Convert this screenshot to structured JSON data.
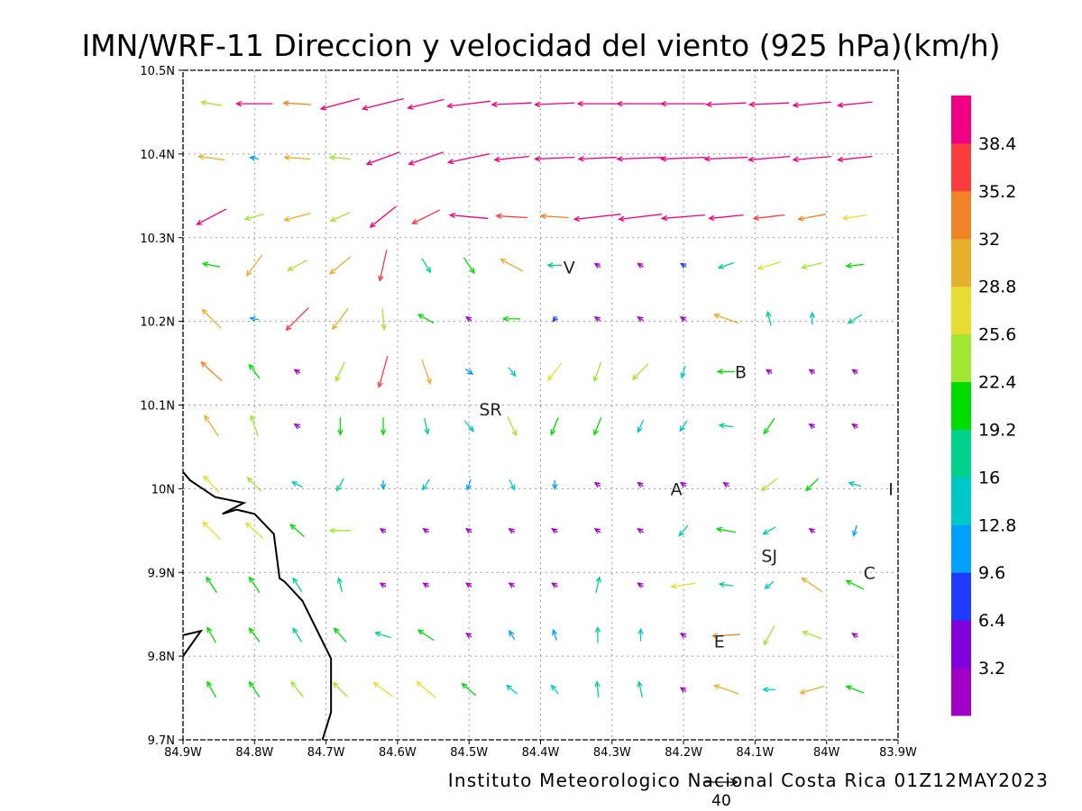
{
  "chart_data": {
    "type": "wind-vector-map",
    "title": "IMN/WRF-11 Direccion y velocidad del viento (925 hPa)(km/h)",
    "footer": "Instituto Meteorologico Nacional Costa Rica 01Z12MAY2023",
    "reference_vector": "40",
    "x_ticks": [
      "84.9W",
      "84.8W",
      "84.7W",
      "84.6W",
      "84.5W",
      "84.4W",
      "84.3W",
      "84.2W",
      "84.1W",
      "84W",
      "83.9W"
    ],
    "y_ticks": [
      "9.7N",
      "9.8N",
      "9.9N",
      "10N",
      "10.1N",
      "10.2N",
      "10.3N",
      "10.4N",
      "10.5N"
    ],
    "xlim": [
      -84.9,
      -83.9
    ],
    "ylim": [
      9.7,
      10.5
    ],
    "grid": true,
    "colorbar": {
      "labels": [
        "3.2",
        "6.4",
        "9.6",
        "12.8",
        "16",
        "19.2",
        "22.4",
        "25.6",
        "28.8",
        "32",
        "35.2",
        "38.4"
      ],
      "colors": [
        "#a000c8",
        "#8200dc",
        "#1e3cff",
        "#00a0ff",
        "#00c8c8",
        "#00d28c",
        "#00dc00",
        "#a0e632",
        "#e6dc32",
        "#e6af2d",
        "#f08228",
        "#fa3c3c",
        "#f00082"
      ]
    },
    "places": [
      {
        "label": "V",
        "lon": -84.36,
        "lat": 10.265
      },
      {
        "label": "B",
        "lon": -84.12,
        "lat": 10.14
      },
      {
        "label": "SR",
        "lon": -84.47,
        "lat": 10.095
      },
      {
        "label": "A",
        "lon": -84.21,
        "lat": 10.0
      },
      {
        "label": "I",
        "lon": -83.91,
        "lat": 10.0
      },
      {
        "label": "SJ",
        "lon": -84.08,
        "lat": 9.92
      },
      {
        "label": "C",
        "lon": -83.94,
        "lat": 9.9
      },
      {
        "label": "E",
        "lon": -84.15,
        "lat": 9.818
      }
    ],
    "coastline": [
      [
        -84.9,
        10.02
      ],
      [
        -84.89,
        10.01
      ],
      [
        -84.855,
        9.99
      ],
      [
        -84.815,
        9.983
      ],
      [
        -84.845,
        9.97
      ],
      [
        -84.825,
        9.975
      ],
      [
        -84.8,
        9.97
      ],
      [
        -84.773,
        9.946
      ],
      [
        -84.765,
        9.893
      ],
      [
        -84.758,
        9.889
      ],
      [
        -84.733,
        9.866
      ],
      [
        -84.693,
        9.797
      ],
      [
        -84.693,
        9.733
      ],
      [
        -84.705,
        9.7
      ]
    ],
    "coastline2": [
      [
        -84.9,
        9.825
      ],
      [
        -84.875,
        9.83
      ],
      [
        -84.9,
        9.8
      ]
    ],
    "lon_cols": [
      -84.86,
      -84.8,
      -84.74,
      -84.68,
      -84.62,
      -84.56,
      -84.5,
      -84.44,
      -84.38,
      -84.32,
      -84.26,
      -84.2,
      -84.14,
      -84.08,
      -84.02,
      -83.96
    ],
    "vector_rows": [
      {
        "lat": 10.46,
        "dx": [
          -24,
          -42,
          -32,
          -45,
          -48,
          -42,
          -50,
          -46,
          -46,
          -46,
          -54,
          -52,
          -46,
          -46,
          -44,
          -40
        ],
        "dy": [
          4,
          0,
          2,
          -12,
          -12,
          -10,
          -6,
          -2,
          -2,
          0,
          0,
          0,
          -2,
          -2,
          -4,
          -4
        ]
      },
      {
        "lat": 10.395,
        "dx": [
          -30,
          -10,
          -30,
          -24,
          -38,
          -40,
          -48,
          -40,
          -46,
          -44,
          -54,
          -52,
          -50,
          -48,
          -44,
          -40
        ],
        "dy": [
          4,
          2,
          2,
          2,
          -14,
          -14,
          -10,
          -4,
          -2,
          -2,
          -2,
          -2,
          -2,
          -4,
          -4,
          -4
        ]
      },
      {
        "lat": 10.325,
        "dx": [
          -34,
          -22,
          -30,
          -22,
          -30,
          -32,
          -44,
          -36,
          -32,
          -54,
          -50,
          -50,
          -40,
          -36,
          -32,
          -28
        ],
        "dy": [
          -18,
          -6,
          -8,
          -10,
          -24,
          -16,
          4,
          2,
          2,
          -6,
          -6,
          -4,
          -4,
          -4,
          -6,
          -4
        ]
      },
      {
        "lat": 10.267,
        "dx": [
          -20,
          -18,
          -22,
          -24,
          -8,
          10,
          12,
          -26,
          -16,
          0,
          0,
          -6,
          -18,
          -26,
          -24,
          -20
        ],
        "dy": [
          4,
          -24,
          -12,
          -20,
          -36,
          -16,
          -18,
          14,
          0,
          0,
          0,
          4,
          -6,
          -8,
          -6,
          -2
        ]
      },
      {
        "lat": 10.203,
        "dx": [
          -22,
          -10,
          -26,
          -18,
          2,
          -18,
          0,
          -20,
          -4,
          0,
          0,
          0,
          -28,
          -4,
          0,
          -16
        ],
        "dy": [
          22,
          2,
          -26,
          -24,
          -24,
          10,
          0,
          0,
          -6,
          0,
          0,
          0,
          10,
          16,
          14,
          -10
        ]
      },
      {
        "lat": 10.14,
        "dx": [
          -24,
          -12,
          0,
          -10,
          -10,
          10,
          8,
          8,
          -16,
          -8,
          -18,
          -4,
          -20,
          0,
          0,
          0
        ],
        "dy": [
          22,
          16,
          0,
          -22,
          -36,
          -28,
          -6,
          -10,
          -20,
          -22,
          -18,
          -14,
          0,
          0,
          0,
          0
        ]
      },
      {
        "lat": 10.075,
        "dx": [
          -16,
          -8,
          0,
          0,
          0,
          4,
          10,
          10,
          -8,
          -8,
          -6,
          -8,
          -16,
          -12,
          0,
          0
        ],
        "dy": [
          24,
          24,
          0,
          -20,
          -20,
          -18,
          -12,
          -22,
          -20,
          -20,
          -14,
          -12,
          2,
          -18,
          0,
          0
        ]
      },
      {
        "lat": 10.005,
        "dx": [
          -18,
          -16,
          -12,
          -8,
          0,
          -8,
          -4,
          6,
          0,
          0,
          0,
          0,
          0,
          -18,
          -14,
          -14
        ],
        "dy": [
          20,
          16,
          6,
          -14,
          -10,
          -12,
          -12,
          -12,
          -10,
          0,
          0,
          0,
          0,
          -14,
          -14,
          4
        ]
      },
      {
        "lat": 9.95,
        "dx": [
          -20,
          -20,
          -16,
          -24,
          0,
          0,
          0,
          0,
          0,
          0,
          0,
          -10,
          -22,
          -14,
          0,
          -4
        ],
        "dy": [
          20,
          18,
          14,
          0,
          0,
          0,
          0,
          0,
          0,
          0,
          0,
          -12,
          4,
          -8,
          0,
          -12
        ]
      },
      {
        "lat": 9.885,
        "dx": [
          -12,
          -12,
          -10,
          -4,
          0,
          0,
          0,
          0,
          0,
          4,
          0,
          -28,
          -16,
          -10,
          -24,
          -20
        ],
        "dy": [
          18,
          18,
          16,
          16,
          0,
          0,
          0,
          0,
          0,
          18,
          0,
          -4,
          2,
          -8,
          16,
          10
        ]
      },
      {
        "lat": 9.825,
        "dx": [
          -10,
          -12,
          -10,
          -14,
          -18,
          -18,
          0,
          -6,
          -4,
          0,
          0,
          0,
          -32,
          -12,
          -22,
          0
        ],
        "dy": [
          18,
          16,
          16,
          16,
          6,
          12,
          0,
          10,
          12,
          18,
          14,
          0,
          -2,
          -22,
          8,
          0
        ]
      },
      {
        "lat": 9.76,
        "dx": [
          -10,
          -12,
          -14,
          -16,
          -22,
          -22,
          -16,
          -12,
          -8,
          -2,
          -4,
          0,
          -28,
          -14,
          -28,
          -20
        ],
        "dy": [
          18,
          18,
          18,
          16,
          16,
          18,
          14,
          10,
          10,
          18,
          18,
          0,
          10,
          0,
          -8,
          8
        ]
      }
    ]
  }
}
